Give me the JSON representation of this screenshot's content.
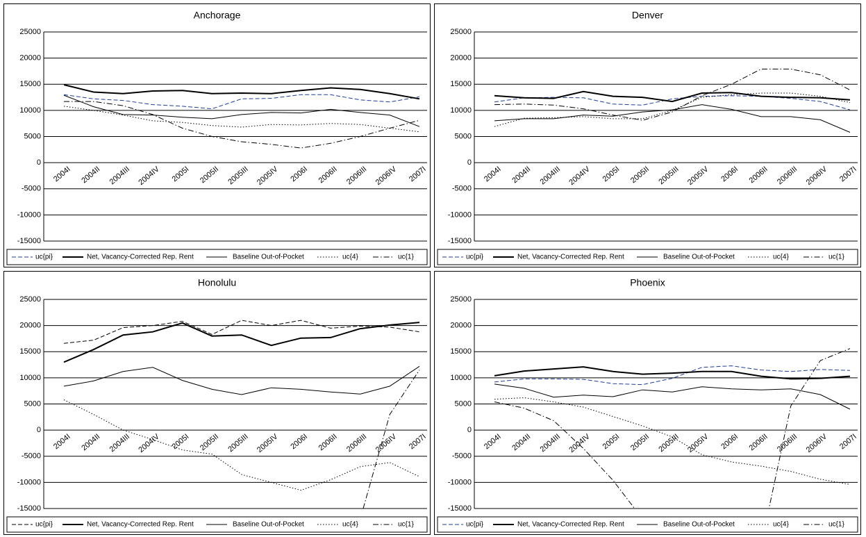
{
  "chart_data": [
    {
      "type": "line",
      "title": "Anchorage",
      "categories": [
        "2004I",
        "2004II",
        "2004III",
        "2004IV",
        "2005I",
        "2005II",
        "2005III",
        "2005IV",
        "2006I",
        "2006II",
        "2006III",
        "2006IV",
        "2007I"
      ],
      "ylim": [
        -15000,
        25000
      ],
      "yticks": [
        -15000,
        -10000,
        -5000,
        0,
        5000,
        10000,
        15000,
        20000,
        25000
      ],
      "grid": true,
      "series": [
        {
          "name": "uc{pi}",
          "color": "#1f3b9c",
          "style": "dashed",
          "values": [
            13000,
            12200,
            11900,
            11100,
            10800,
            10300,
            12200,
            12300,
            13000,
            13000,
            12000,
            11600,
            12600
          ]
        },
        {
          "name": "Net, Vacancy-Corrected Rep. Rent",
          "color": "#000000",
          "style": "thick",
          "values": [
            14900,
            13500,
            13200,
            13700,
            13800,
            13200,
            13300,
            13200,
            13800,
            14300,
            14000,
            13200,
            12200
          ]
        },
        {
          "name": "Baseline Out-of-Pocket",
          "color": "#000000",
          "style": "solid",
          "values": [
            12900,
            10700,
            9200,
            9100,
            8700,
            8400,
            9200,
            9600,
            9500,
            10200,
            9600,
            9100,
            6900
          ]
        },
        {
          "name": "uc{4}",
          "color": "#000000",
          "style": "dotted",
          "values": [
            10800,
            10000,
            9100,
            8000,
            7700,
            7100,
            6800,
            7300,
            7200,
            7500,
            7300,
            6600,
            5900
          ]
        },
        {
          "name": "uc{1}",
          "color": "#000000",
          "style": "dashdot",
          "values": [
            11700,
            11700,
            10900,
            9200,
            6600,
            5000,
            4000,
            3500,
            2800,
            3700,
            5000,
            6600,
            8100
          ]
        }
      ]
    },
    {
      "type": "line",
      "title": "Denver",
      "categories": [
        "2004I",
        "2004II",
        "2004III",
        "2004IV",
        "2005I",
        "2005II",
        "2005III",
        "2005IV",
        "2006I",
        "2006II",
        "2006III",
        "2006IV",
        "2007I"
      ],
      "ylim": [
        -15000,
        25000
      ],
      "yticks": [
        -15000,
        -10000,
        -5000,
        0,
        5000,
        10000,
        15000,
        20000,
        25000
      ],
      "grid": true,
      "series": [
        {
          "name": "uc{pi}",
          "color": "#1f3b9c",
          "style": "dashed",
          "values": [
            11600,
            12400,
            12500,
            12400,
            11200,
            11000,
            12200,
            12700,
            12800,
            12700,
            12300,
            11700,
            10100
          ]
        },
        {
          "name": "Net, Vacancy-Corrected Rep. Rent",
          "color": "#000000",
          "style": "thick",
          "values": [
            12800,
            12400,
            12300,
            13600,
            12700,
            12500,
            11700,
            13300,
            13400,
            12700,
            12500,
            12400,
            12000
          ]
        },
        {
          "name": "Baseline Out-of-Pocket",
          "color": "#000000",
          "style": "solid",
          "values": [
            8000,
            8400,
            8400,
            9100,
            8900,
            9700,
            10100,
            11100,
            10200,
            8800,
            8800,
            8200,
            5800
          ]
        },
        {
          "name": "uc{4}",
          "color": "#000000",
          "style": "dotted",
          "values": [
            6900,
            8500,
            8600,
            8800,
            8400,
            8400,
            10000,
            12500,
            13000,
            13300,
            13300,
            12700,
            11500
          ]
        },
        {
          "name": "uc{1}",
          "color": "#000000",
          "style": "dashdot",
          "values": [
            11100,
            11200,
            11000,
            10300,
            9100,
            8100,
            9700,
            12800,
            15000,
            17900,
            17900,
            16800,
            13900
          ]
        }
      ]
    },
    {
      "type": "line",
      "title": "Honolulu",
      "categories": [
        "2004I",
        "2004II",
        "2004III",
        "2004IV",
        "2005I",
        "2005II",
        "2005III",
        "2005IV",
        "2006I",
        "2006II",
        "2006III",
        "2006IV",
        "2007I"
      ],
      "ylim": [
        -15000,
        25000
      ],
      "yticks": [
        -15000,
        -10000,
        -5000,
        0,
        5000,
        10000,
        15000,
        20000,
        25000
      ],
      "grid": true,
      "series": [
        {
          "name": "uc{pi}",
          "color": "#000000",
          "style": "dashed",
          "values": [
            16600,
            17200,
            19600,
            20000,
            20800,
            18300,
            21000,
            20000,
            21000,
            19500,
            19900,
            19700,
            18800
          ]
        },
        {
          "name": "Net, Vacancy-Corrected Rep. Rent",
          "color": "#000000",
          "style": "thick",
          "values": [
            13000,
            15400,
            18200,
            18800,
            20500,
            18000,
            18200,
            16200,
            17600,
            17700,
            19400,
            20100,
            20600
          ]
        },
        {
          "name": "Baseline Out-of-Pocket",
          "color": "#000000",
          "style": "solid",
          "values": [
            8400,
            9400,
            11200,
            12000,
            9500,
            7800,
            6800,
            8100,
            7800,
            7300,
            6900,
            8400,
            12200
          ]
        },
        {
          "name": "uc{4}",
          "color": "#000000",
          "style": "dotted",
          "values": [
            5800,
            3000,
            0,
            -1800,
            -3800,
            -4600,
            -8500,
            -10000,
            -11500,
            -9500,
            -7000,
            -6200,
            -8900
          ]
        },
        {
          "name": "uc{1}",
          "color": "#000000",
          "style": "dashdot",
          "values": [
            null,
            null,
            null,
            null,
            null,
            null,
            null,
            null,
            null,
            null,
            -17000,
            3000,
            11500
          ]
        }
      ]
    },
    {
      "type": "line",
      "title": "Phoenix",
      "categories": [
        "2004I",
        "2004II",
        "2004III",
        "2004IV",
        "2005I",
        "2005II",
        "2005III",
        "2005IV",
        "2006I",
        "2006II",
        "2006III",
        "2006IV",
        "2007I"
      ],
      "ylim": [
        -15000,
        25000
      ],
      "yticks": [
        -15000,
        -10000,
        -5000,
        0,
        5000,
        10000,
        15000,
        20000,
        25000
      ],
      "grid": true,
      "series": [
        {
          "name": "uc{pi}",
          "color": "#1f3b9c",
          "style": "dashed",
          "values": [
            9200,
            9800,
            9800,
            9700,
            8900,
            8700,
            9900,
            12000,
            12300,
            11500,
            11200,
            11600,
            11400
          ]
        },
        {
          "name": "Net, Vacancy-Corrected Rep. Rent",
          "color": "#000000",
          "style": "thick",
          "values": [
            10400,
            11300,
            11700,
            12100,
            11200,
            10700,
            10900,
            11200,
            11200,
            10300,
            9800,
            9900,
            10300
          ]
        },
        {
          "name": "Baseline Out-of-Pocket",
          "color": "#000000",
          "style": "solid",
          "values": [
            8800,
            8000,
            6300,
            6700,
            6400,
            7700,
            7300,
            8300,
            7900,
            7700,
            7900,
            6800,
            4000
          ]
        },
        {
          "name": "uc{4}",
          "color": "#000000",
          "style": "dotted",
          "values": [
            5900,
            6200,
            5400,
            4400,
            2600,
            800,
            -1300,
            -4700,
            -6100,
            -6900,
            -7900,
            -9400,
            -10400
          ]
        },
        {
          "name": "uc{1}",
          "color": "#000000",
          "style": "dashdot",
          "values": [
            5400,
            4200,
            1800,
            -3500,
            -9600,
            -17000,
            null,
            null,
            null,
            -22000,
            4600,
            13300,
            15600
          ]
        }
      ]
    }
  ]
}
